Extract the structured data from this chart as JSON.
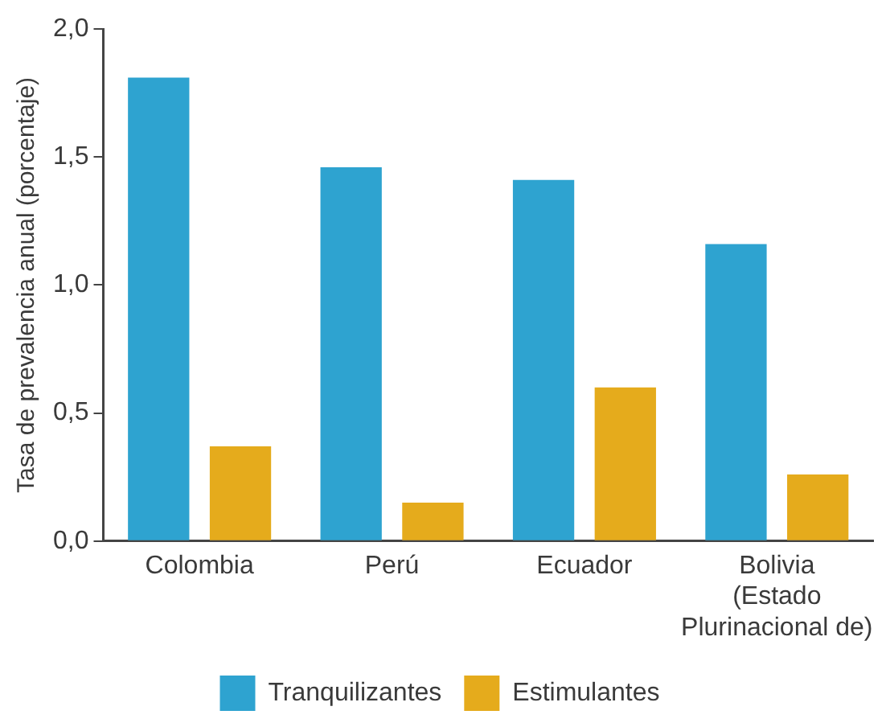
{
  "chart_data": {
    "type": "bar",
    "ylabel": "Tasa de prevalencia anual (porcentaje)",
    "categories": [
      "Colombia",
      "Perú",
      "Ecuador",
      "Bolivia\n(Estado\nPlurinacional de)"
    ],
    "series": [
      {
        "name": "Tranquilizantes",
        "color": "#2ea3d0",
        "values": [
          1.81,
          1.46,
          1.41,
          1.16
        ]
      },
      {
        "name": "Estimulantes",
        "color": "#e5ab1c",
        "values": [
          0.37,
          0.15,
          0.6,
          0.26
        ]
      }
    ],
    "ylim": [
      0,
      2
    ],
    "yticks": [
      {
        "value": 0,
        "label": "0,0"
      },
      {
        "value": 0.5,
        "label": "0,5"
      },
      {
        "value": 1,
        "label": "1,0"
      },
      {
        "value": 1.5,
        "label": "1,5"
      },
      {
        "value": 2,
        "label": "2,0"
      }
    ],
    "grid": false,
    "legend": "bottom"
  }
}
